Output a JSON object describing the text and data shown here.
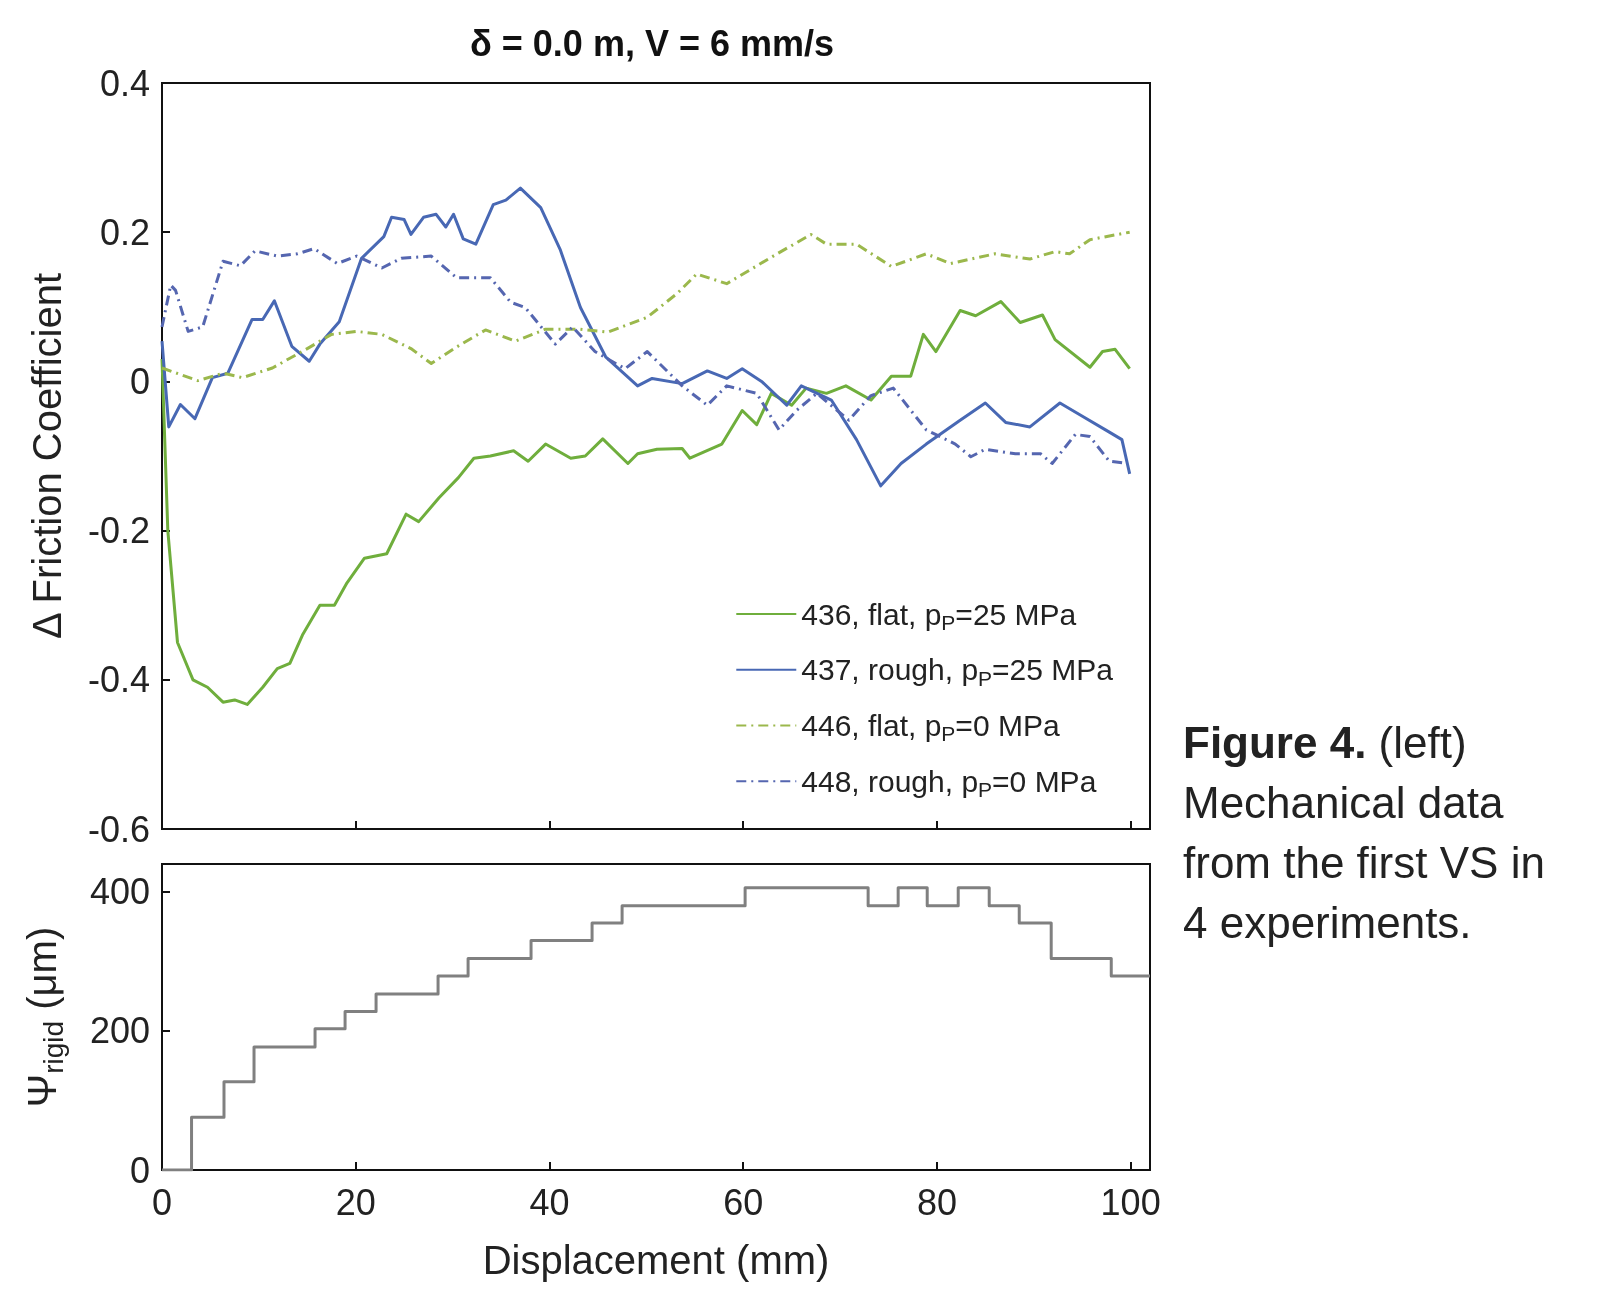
{
  "chart_data": [
    {
      "type": "line",
      "title": "δ = 0.0 m, V = 6 mm/s",
      "ylabel": "Δ Friction Coefficient",
      "xlim": [
        0,
        102
      ],
      "xticks": [
        0,
        20,
        40,
        60,
        80,
        100
      ],
      "ylim": [
        -0.6,
        0.4
      ],
      "yticks": [
        -0.6,
        -0.4,
        -0.2,
        0,
        0.2,
        0.4
      ],
      "tick_labels": "y",
      "grid": false,
      "legend": "bottom right",
      "marker": "none",
      "annotations": [
        "Figure 4.",
        "(left) Mechanical data from the first VS in 4 experiments."
      ],
      "series": [
        {
          "name": "436, flat, p$_{P}$=25 MPa",
          "color": "#6fae3c",
          "line_style": "solid",
          "x": [
            0,
            0.6,
            1.6,
            3.2,
            4.7,
            6.3,
            7.5,
            8.8,
            10.4,
            11.9,
            13.2,
            14.5,
            16.3,
            17.8,
            19.1,
            20.9,
            23.2,
            25.2,
            26.5,
            28.6,
            30.6,
            32.2,
            33.9,
            36.3,
            37.8,
            39.6,
            42.2,
            43.7,
            45.5,
            48.1,
            49.1,
            51.1,
            53.7,
            54.5,
            57.8,
            59.9,
            61.4,
            62.9,
            65,
            66.5,
            68.6,
            70.6,
            73.2,
            75.3,
            77.3,
            78.6,
            79.9,
            82.4,
            84,
            86.6,
            88.6,
            90.9,
            92.2,
            95.8,
            97.1,
            98.4,
            99.9
          ],
          "values": [
            0.03,
            -0.2,
            -0.35,
            -0.4,
            -0.41,
            -0.43,
            -0.427,
            -0.433,
            -0.41,
            -0.385,
            -0.378,
            -0.34,
            -0.3,
            -0.3,
            -0.27,
            -0.237,
            -0.231,
            -0.178,
            -0.188,
            -0.156,
            -0.129,
            -0.103,
            -0.1,
            -0.093,
            -0.107,
            -0.084,
            -0.103,
            -0.1,
            -0.077,
            -0.11,
            -0.097,
            -0.091,
            -0.09,
            -0.103,
            -0.084,
            -0.039,
            -0.058,
            -0.016,
            -0.032,
            -0.009,
            -0.016,
            -0.006,
            -0.025,
            0.007,
            0.007,
            0.063,
            0.04,
            0.095,
            0.088,
            0.107,
            0.079,
            0.089,
            0.056,
            0.019,
            0.04,
            0.043,
            0.017
          ]
        },
        {
          "name": "437, rough, p$_{P}$=25 MPa",
          "color": "#4868b4",
          "line_style": "solid",
          "x": [
            0,
            0.7,
            1.9,
            3.4,
            5.2,
            6.8,
            9.3,
            10.4,
            11.6,
            13.4,
            15.2,
            16.3,
            18.3,
            20.6,
            22.9,
            23.7,
            25,
            25.7,
            27,
            28.3,
            29.3,
            30.1,
            31.1,
            32.4,
            34.2,
            35.5,
            37,
            39.1,
            41.1,
            43.2,
            45.8,
            49.1,
            50.6,
            53.7,
            56.3,
            58.3,
            59.9,
            61.9,
            64.5,
            66,
            69.1,
            71.7,
            74.2,
            76.3,
            78.9,
            82.4,
            85,
            87.1,
            89.6,
            92.7,
            94.8,
            97.8,
            99.1,
            99.9
          ],
          "values": [
            0.054,
            -0.061,
            -0.031,
            -0.05,
            0.005,
            0.011,
            0.083,
            0.083,
            0.108,
            0.047,
            0.027,
            0.05,
            0.08,
            0.165,
            0.194,
            0.22,
            0.217,
            0.197,
            0.22,
            0.224,
            0.207,
            0.224,
            0.191,
            0.184,
            0.237,
            0.243,
            0.259,
            0.233,
            0.177,
            0.099,
            0.033,
            -0.006,
            0.004,
            -0.003,
            0.014,
            0.004,
            0.017,
            0,
            -0.032,
            -0.006,
            -0.025,
            -0.078,
            -0.14,
            -0.11,
            -0.084,
            -0.052,
            -0.029,
            -0.055,
            -0.061,
            -0.029,
            -0.045,
            -0.068,
            -0.078,
            -0.124
          ]
        },
        {
          "name": "446, flat, p$_{P}$=0 MPa",
          "color": "#9bb84c",
          "line_style": "dashdot",
          "x": [
            0,
            3.7,
            6.3,
            8.3,
            11.4,
            15,
            17.5,
            20.1,
            22.7,
            25.7,
            27.8,
            30.4,
            33.4,
            36.5,
            39.6,
            43.2,
            46,
            50.1,
            53.2,
            55.2,
            58.3,
            63.5,
            67,
            68.6,
            71.7,
            75.3,
            78.9,
            81.4,
            86,
            89.6,
            92.2,
            93.7,
            95.8,
            99.9
          ],
          "values": [
            0.018,
            0.001,
            0.011,
            0.005,
            0.018,
            0.044,
            0.063,
            0.067,
            0.063,
            0.044,
            0.024,
            0.046,
            0.069,
            0.054,
            0.07,
            0.07,
            0.066,
            0.086,
            0.118,
            0.144,
            0.131,
            0.171,
            0.197,
            0.184,
            0.184,
            0.154,
            0.171,
            0.158,
            0.171,
            0.164,
            0.174,
            0.171,
            0.19,
            0.2
          ]
        },
        {
          "name": "448, rough, p$_{P}$=0 MPa",
          "color": "#5566b0",
          "line_style": "dashdot",
          "x": [
            0,
            0.9,
            1.4,
            2.7,
            4.2,
            6.3,
            8.1,
            9.6,
            11.9,
            14,
            15.7,
            18.1,
            20.1,
            22.7,
            24.7,
            27.8,
            30.4,
            33.9,
            36,
            37.5,
            40.6,
            42.4,
            44.7,
            47.8,
            50.1,
            53.7,
            56.3,
            58.3,
            61.4,
            63.7,
            65.5,
            67.6,
            70.9,
            73.2,
            75.5,
            78.9,
            81.9,
            83.5,
            85,
            88.1,
            90.7,
            91.9,
            94.3,
            95.8,
            97.8,
            99.6
          ],
          "values": [
            0.073,
            0.129,
            0.122,
            0.067,
            0.073,
            0.161,
            0.155,
            0.175,
            0.168,
            0.171,
            0.178,
            0.158,
            0.168,
            0.152,
            0.165,
            0.168,
            0.139,
            0.139,
            0.106,
            0.099,
            0.05,
            0.073,
            0.04,
            0.017,
            0.04,
            -0.006,
            -0.032,
            -0.006,
            -0.016,
            -0.065,
            -0.039,
            -0.016,
            -0.052,
            -0.019,
            -0.009,
            -0.065,
            -0.084,
            -0.101,
            -0.091,
            -0.097,
            -0.097,
            -0.11,
            -0.071,
            -0.074,
            -0.107,
            -0.11
          ]
        }
      ]
    },
    {
      "type": "step",
      "xlabel": "Displacement (mm)",
      "ylabel": "Ψ$_{rigid}$ (μm)",
      "xlim": [
        0,
        102
      ],
      "xticks": [
        0,
        20,
        40,
        60,
        80,
        100
      ],
      "ylim": [
        0,
        440
      ],
      "yticks": [
        0,
        200,
        400
      ],
      "grid": false,
      "marker": "none",
      "line_style": "solid",
      "series": [
        {
          "color": "#808080",
          "x": [
            0,
            3.05,
            6.4,
            9.5,
            15.8,
            18.9,
            22.1,
            28.5,
            31.6,
            38.1,
            44.4,
            47.5,
            60.2,
            72.9,
            76,
            79,
            82.2,
            85.4,
            88.5,
            91.8,
            98,
            102
          ],
          "values": [
            0,
            76,
            127,
            177,
            203,
            228,
            253,
            279,
            304,
            330,
            355,
            380,
            406,
            380,
            406,
            380,
            406,
            380,
            355,
            304,
            279,
            279
          ]
        }
      ]
    }
  ]
}
